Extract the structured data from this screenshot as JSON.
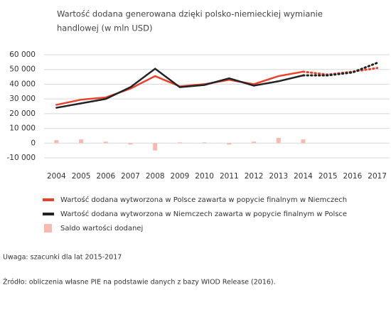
{
  "chart_data": {
    "type": "line",
    "title_lines": [
      "Wartość dodana generowana dzięki polsko-niemieckiej wymianie",
      "handlowej (w mln USD)"
    ],
    "categories": [
      "2004",
      "2005",
      "2006",
      "2007",
      "2008",
      "2009",
      "2010",
      "2011",
      "2012",
      "2013",
      "2014",
      "2015",
      "2016",
      "2017"
    ],
    "series": [
      {
        "name": "Wartość dodana wytworzona w Polsce zawarta w popycie finalnym w Niemczech",
        "color": "#e8412c",
        "type": "line",
        "values": [
          26000,
          29500,
          31000,
          37000,
          45500,
          38500,
          40000,
          43000,
          40000,
          45500,
          48500,
          46500,
          48500,
          51000
        ]
      },
      {
        "name": "Wartość dodana wytworzona w Niemczech zawarta w popycie finalnym w Polsce",
        "color": "#222222",
        "type": "line",
        "values": [
          24000,
          27000,
          30000,
          38000,
          50500,
          38000,
          39500,
          44000,
          39000,
          42000,
          46000,
          46000,
          48000,
          54500
        ]
      },
      {
        "name": "Saldo wartości dodanej",
        "color": "#f7b9b0",
        "type": "bar",
        "values": [
          2000,
          2500,
          1000,
          -1000,
          -5000,
          500,
          500,
          -1000,
          1000,
          3500,
          2500,
          null,
          null,
          null
        ]
      }
    ],
    "ylim": [
      -10000,
      60000
    ],
    "yticks": [
      {
        "value": -10000,
        "label": "-10 000"
      },
      0,
      {
        "value": 10000,
        "label": "10 000"
      },
      {
        "value": 20000,
        "label": "20 000"
      },
      {
        "value": 30000,
        "label": "30 000"
      },
      {
        "value": 40000,
        "label": "40 000"
      },
      {
        "value": 50000,
        "label": "50 000"
      },
      {
        "value": 60000,
        "label": "60 000"
      }
    ],
    "grid": true,
    "notes": [
      "Uwaga: szacunki dla lat 2015-2017",
      "Źródło: obliczenia własne PIE na podstawie danych z bazy WIOD Release (2016)."
    ]
  }
}
